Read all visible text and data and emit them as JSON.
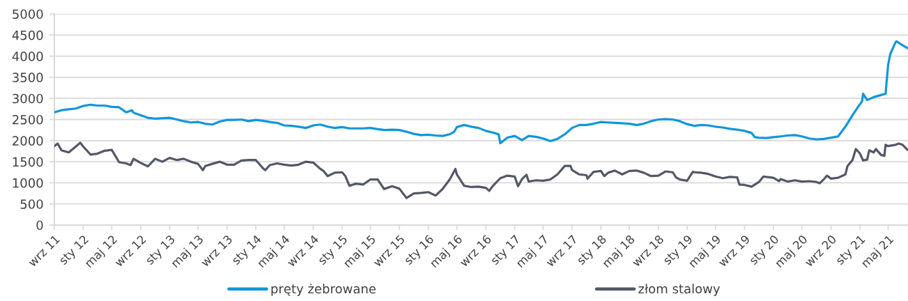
{
  "chart_data": {
    "type": "line",
    "xlim": [
      "2011-09-01",
      "2021-07-24"
    ],
    "ylim": [
      0,
      5000
    ],
    "yticks": [
      0,
      500,
      1000,
      1500,
      2000,
      2500,
      3000,
      3500,
      4000,
      4500,
      5000
    ],
    "xticks": [
      {
        "value": "2011-09",
        "label": "wrz 11"
      },
      {
        "value": "2012-01",
        "label": "sty 12"
      },
      {
        "value": "2012-05",
        "label": "maj 12"
      },
      {
        "value": "2012-09",
        "label": "wrz 12"
      },
      {
        "value": "2013-01",
        "label": "sty 13"
      },
      {
        "value": "2013-05",
        "label": "maj 13"
      },
      {
        "value": "2013-09",
        "label": "wrz 13"
      },
      {
        "value": "2014-01",
        "label": "sty 14"
      },
      {
        "value": "2014-05",
        "label": "maj 14"
      },
      {
        "value": "2014-09",
        "label": "wrz 14"
      },
      {
        "value": "2015-01",
        "label": "sty 15"
      },
      {
        "value": "2015-05",
        "label": "maj 15"
      },
      {
        "value": "2015-09",
        "label": "wrz 15"
      },
      {
        "value": "2016-01",
        "label": "sty 16"
      },
      {
        "value": "2016-05",
        "label": "maj 16"
      },
      {
        "value": "2016-09",
        "label": "wrz 16"
      },
      {
        "value": "2017-01",
        "label": "sty 17"
      },
      {
        "value": "2017-05",
        "label": "maj 17"
      },
      {
        "value": "2017-09",
        "label": "wrz 17"
      },
      {
        "value": "2018-01",
        "label": "sty 18"
      },
      {
        "value": "2018-05",
        "label": "maj 18"
      },
      {
        "value": "2018-09",
        "label": "wrz 18"
      },
      {
        "value": "2019-01",
        "label": "sty 19"
      },
      {
        "value": "2019-05",
        "label": "maj 19"
      },
      {
        "value": "2019-09",
        "label": "wrz 19"
      },
      {
        "value": "2020-01",
        "label": "sty 20"
      },
      {
        "value": "2020-05",
        "label": "maj 20"
      },
      {
        "value": "2020-09",
        "label": "wrz 20"
      },
      {
        "value": "2021-01",
        "label": "sty 21"
      },
      {
        "value": "2021-05",
        "label": "maj 21"
      }
    ],
    "grid": "y",
    "legend": "bottom",
    "series": [
      {
        "name": "pręty żebrowane",
        "color": "#1096dc",
        "x": [
          "2011-09",
          "2011-10",
          "2011-11",
          "2011-12",
          "2012-01",
          "2012-02",
          "2012-03",
          "2012-04",
          "2012-05",
          "2012-06",
          "2012-07",
          "2012-07-25",
          "2012-08",
          "2012-09",
          "2012-10",
          "2012-11",
          "2012-12",
          "2013-01",
          "2013-02",
          "2013-03",
          "2013-04",
          "2013-05",
          "2013-06",
          "2013-07",
          "2013-08",
          "2013-09",
          "2013-10",
          "2013-11",
          "2013-12",
          "2014-01",
          "2014-02",
          "2014-03",
          "2014-04",
          "2014-05",
          "2014-06",
          "2014-07",
          "2014-08",
          "2014-09",
          "2014-10",
          "2014-11",
          "2014-12",
          "2015-01",
          "2015-02",
          "2015-03",
          "2015-04",
          "2015-05",
          "2015-06",
          "2015-07",
          "2015-08",
          "2015-09",
          "2015-10",
          "2015-11",
          "2015-12",
          "2016-01",
          "2016-02",
          "2016-03",
          "2016-04",
          "2016-04-20",
          "2016-05",
          "2016-06",
          "2016-07",
          "2016-08",
          "2016-09",
          "2016-10",
          "2016-10-25",
          "2016-11",
          "2016-12",
          "2017-01",
          "2017-02",
          "2017-03",
          "2017-04",
          "2017-05",
          "2017-06",
          "2017-07",
          "2017-08",
          "2017-09",
          "2017-10",
          "2017-11",
          "2017-12",
          "2018-01",
          "2018-02",
          "2018-03",
          "2018-04",
          "2018-05",
          "2018-06",
          "2018-07",
          "2018-08",
          "2018-09",
          "2018-10",
          "2018-11",
          "2018-12",
          "2019-01",
          "2019-02",
          "2019-03",
          "2019-04",
          "2019-05",
          "2019-06",
          "2019-07",
          "2019-08",
          "2019-09",
          "2019-10",
          "2019-10-15",
          "2019-11",
          "2019-12",
          "2020-01",
          "2020-02",
          "2020-03",
          "2020-04",
          "2020-05",
          "2020-06",
          "2020-07",
          "2020-08",
          "2020-09",
          "2020-10",
          "2020-11",
          "2020-12",
          "2021-01",
          "2021-01-10",
          "2021-01-15",
          "2021-02",
          "2021-03",
          "2021-04",
          "2021-04-20",
          "2021-05",
          "2021-05-10",
          "2021-06",
          "2021-06-05",
          "2021-07",
          "2021-07-22"
        ],
        "values": [
          2670,
          2720,
          2740,
          2760,
          2820,
          2850,
          2830,
          2830,
          2800,
          2790,
          2670,
          2720,
          2660,
          2600,
          2540,
          2520,
          2530,
          2540,
          2500,
          2460,
          2430,
          2440,
          2400,
          2380,
          2450,
          2490,
          2490,
          2500,
          2460,
          2490,
          2470,
          2440,
          2420,
          2360,
          2350,
          2330,
          2300,
          2360,
          2380,
          2330,
          2300,
          2320,
          2290,
          2290,
          2290,
          2300,
          2270,
          2250,
          2260,
          2250,
          2210,
          2160,
          2130,
          2140,
          2120,
          2110,
          2150,
          2210,
          2320,
          2370,
          2330,
          2300,
          2230,
          2190,
          2150,
          1940,
          2070,
          2110,
          2010,
          2110,
          2090,
          2050,
          1990,
          2040,
          2150,
          2300,
          2370,
          2370,
          2400,
          2440,
          2430,
          2420,
          2410,
          2400,
          2370,
          2400,
          2460,
          2500,
          2510,
          2500,
          2460,
          2390,
          2350,
          2370,
          2360,
          2330,
          2310,
          2280,
          2260,
          2230,
          2180,
          2080,
          2070,
          2060,
          2080,
          2100,
          2120,
          2130,
          2100,
          2050,
          2030,
          2040,
          2070,
          2100,
          2330,
          2600,
          2860,
          2920,
          3110,
          2960,
          3030,
          3080,
          3110,
          3800,
          4050,
          4330,
          4350,
          4260,
          4190
        ]
      },
      {
        "name": "złom stalowy",
        "color": "#545866",
        "x": [
          "2011-09",
          "2011-09-15",
          "2011-10",
          "2011-11",
          "2011-12",
          "2011-12-20",
          "2012-01",
          "2012-02",
          "2012-03",
          "2012-04",
          "2012-05",
          "2012-06",
          "2012-07",
          "2012-07-20",
          "2012-08",
          "2012-09",
          "2012-10",
          "2012-11",
          "2012-12",
          "2013-01",
          "2013-02",
          "2013-03",
          "2013-04",
          "2013-05",
          "2013-05-22",
          "2013-06",
          "2013-07",
          "2013-08",
          "2013-09",
          "2013-10",
          "2013-11",
          "2013-12",
          "2014-01",
          "2014-02",
          "2014-02-10",
          "2014-03",
          "2014-04",
          "2014-05",
          "2014-06",
          "2014-07",
          "2014-08",
          "2014-09",
          "2014-10",
          "2014-10-15",
          "2014-11",
          "2014-12",
          "2015-01",
          "2015-01-15",
          "2015-02",
          "2015-03",
          "2015-04",
          "2015-05",
          "2015-06",
          "2015-06-28",
          "2015-07",
          "2015-08",
          "2015-09",
          "2015-10",
          "2015-11",
          "2015-12",
          "2016-01",
          "2016-02",
          "2016-03",
          "2016-04",
          "2016-04-25",
          "2016-05",
          "2016-06",
          "2016-07",
          "2016-08",
          "2016-09",
          "2016-09-15",
          "2016-10",
          "2016-11",
          "2016-12",
          "2017-01",
          "2017-01-15",
          "2017-02",
          "2017-02-20",
          "2017-03",
          "2017-04",
          "2017-05",
          "2017-06",
          "2017-07",
          "2017-08",
          "2017-08-25",
          "2017-09",
          "2017-10",
          "2017-11",
          "2017-11-05",
          "2017-12",
          "2018-01",
          "2018-01-15",
          "2018-02",
          "2018-03",
          "2018-04",
          "2018-05",
          "2018-06",
          "2018-07",
          "2018-08",
          "2018-09",
          "2018-10",
          "2018-11",
          "2018-11-15",
          "2018-12",
          "2019-01",
          "2019-01-25",
          "2019-02",
          "2019-03",
          "2019-04",
          "2019-05",
          "2019-06",
          "2019-07",
          "2019-08",
          "2019-08-10",
          "2019-09",
          "2019-10",
          "2019-11",
          "2019-11-20",
          "2019-12",
          "2020-01",
          "2020-01-25",
          "2020-02",
          "2020-03",
          "2020-04",
          "2020-05",
          "2020-06",
          "2020-07",
          "2020-07-15",
          "2020-08",
          "2020-08-15",
          "2020-09",
          "2020-10",
          "2020-11",
          "2020-11-10",
          "2020-12",
          "2020-12-15",
          "2021-01",
          "2021-01-15",
          "2021-02",
          "2021-02-10",
          "2021-03",
          "2021-03-10",
          "2021-04",
          "2021-04-15",
          "2021-04-20",
          "2021-05",
          "2021-06",
          "2021-06-15",
          "2021-07",
          "2021-07-22"
        ],
        "values": [
          1870,
          1930,
          1770,
          1720,
          1860,
          1950,
          1860,
          1670,
          1690,
          1760,
          1780,
          1490,
          1460,
          1420,
          1570,
          1470,
          1390,
          1570,
          1500,
          1590,
          1540,
          1570,
          1500,
          1450,
          1300,
          1400,
          1450,
          1500,
          1430,
          1430,
          1530,
          1540,
          1540,
          1340,
          1300,
          1420,
          1460,
          1430,
          1410,
          1430,
          1500,
          1480,
          1330,
          1280,
          1160,
          1240,
          1250,
          1160,
          930,
          980,
          960,
          1080,
          1080,
          850,
          860,
          920,
          860,
          640,
          750,
          760,
          780,
          700,
          850,
          1080,
          1330,
          1200,
          930,
          900,
          910,
          880,
          810,
          930,
          1110,
          1170,
          1150,
          920,
          1090,
          1190,
          1030,
          1060,
          1050,
          1080,
          1200,
          1400,
          1400,
          1300,
          1200,
          1180,
          1100,
          1260,
          1280,
          1160,
          1240,
          1290,
          1200,
          1280,
          1290,
          1240,
          1160,
          1170,
          1270,
          1250,
          1130,
          1080,
          1050,
          1260,
          1250,
          1240,
          1210,
          1150,
          1110,
          1140,
          1130,
          960,
          950,
          910,
          1020,
          1150,
          1140,
          1120,
          1040,
          1090,
          1030,
          1060,
          1030,
          1040,
          1020,
          990,
          1080,
          1170,
          1100,
          1120,
          1200,
          1400,
          1540,
          1800,
          1700,
          1530,
          1550,
          1770,
          1720,
          1800,
          1660,
          1640,
          1900,
          1870,
          1900,
          1930,
          1900,
          1780
        ]
      }
    ]
  }
}
